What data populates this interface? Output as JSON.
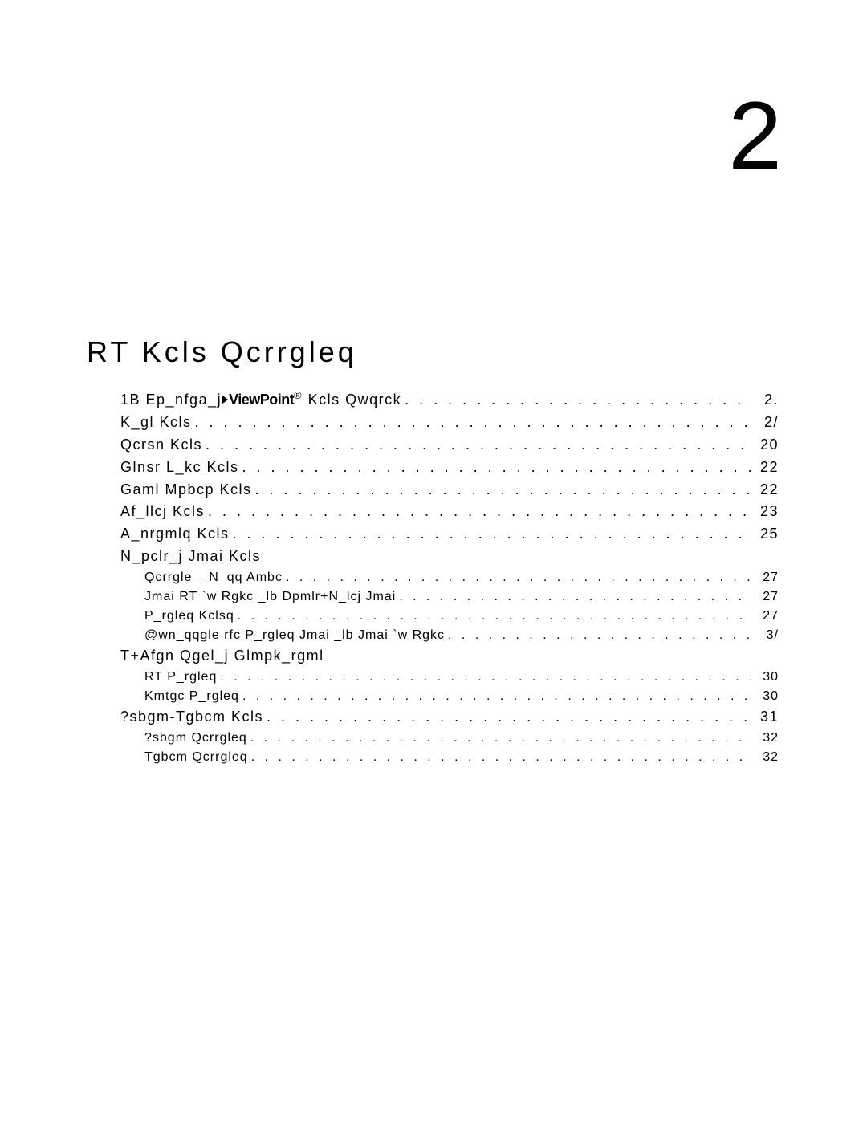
{
  "chapter_number": "2",
  "chapter_title": "RT Kcls Qcrrgleq",
  "brand_text": "ViewPoint",
  "toc": [
    {
      "level": 1,
      "label_pre": "1B Ep_nfga_j",
      "has_brand": true,
      "label_post": " Kcls Qwqrck ",
      "page": "2."
    },
    {
      "level": 1,
      "label": "K_gl Kcls",
      "page": "2/"
    },
    {
      "level": 1,
      "label": "Qcrsn Kcls ",
      "page": "20"
    },
    {
      "level": 1,
      "label": "Glnsr L_kc Kcls",
      "page": "22"
    },
    {
      "level": 1,
      "label": "Gaml Mpbcp Kcls ",
      "page": "22"
    },
    {
      "level": 1,
      "label": "Af_llcj Kcls ",
      "page": "23"
    },
    {
      "level": 1,
      "label": "A_nrgmlq Kcls",
      "page": "25"
    },
    {
      "level": 1,
      "heading": "N_pclr_j Jmai Kcls"
    },
    {
      "level": 2,
      "label": "Qcrrgle _ N_qq Ambc ",
      "page": "27"
    },
    {
      "level": 2,
      "label": "Jmai RT `w Rgkc _lb Dpmlr+N_lcj Jmai",
      "page": "27"
    },
    {
      "level": 2,
      "label": "P_rgleq Kclsq ",
      "page": "27"
    },
    {
      "level": 2,
      "label": "@wn_qqgle rfc P_rgleq Jmai _lb Jmai `w Rgkc",
      "page": "3/"
    },
    {
      "level": 1,
      "heading": "T+Afgn Qgel_j Glmpk_rgml"
    },
    {
      "level": 2,
      "label": "RT P_rgleq",
      "page": "30"
    },
    {
      "level": 2,
      "label": "Kmtgc P_rgleq",
      "page": "30"
    },
    {
      "level": 1,
      "label": "?sbgm-Tgbcm Kcls ",
      "page": "31"
    },
    {
      "level": 2,
      "label": "?sbgm Qcrrgleq",
      "page": "32"
    },
    {
      "level": 2,
      "label": "Tgbcm Qcrrgleq",
      "page": "32"
    }
  ]
}
